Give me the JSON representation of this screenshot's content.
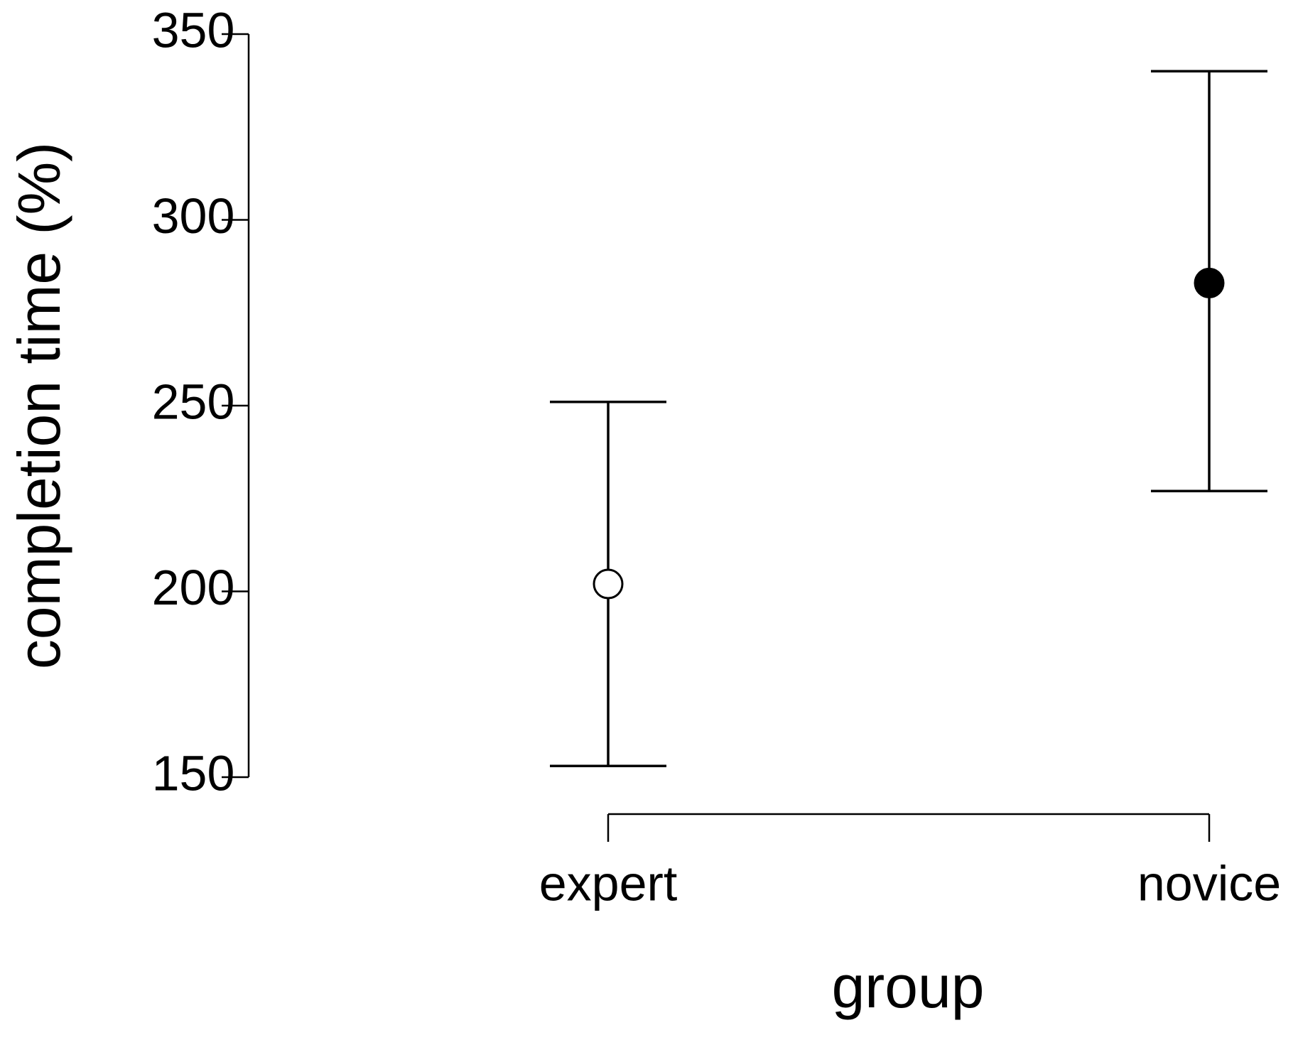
{
  "chart_data": {
    "type": "errorbar",
    "x_label": "group",
    "y_label": "completion time (%)",
    "categories": [
      "expert",
      "novice"
    ],
    "values": [
      202,
      283
    ],
    "lower": [
      153,
      227
    ],
    "upper": [
      251,
      340
    ],
    "colors": [
      "#ffffff",
      "#000000"
    ],
    "ylim": [
      150,
      350
    ],
    "yticks": [
      150,
      200,
      250,
      300,
      350
    ],
    "grid": false
  }
}
